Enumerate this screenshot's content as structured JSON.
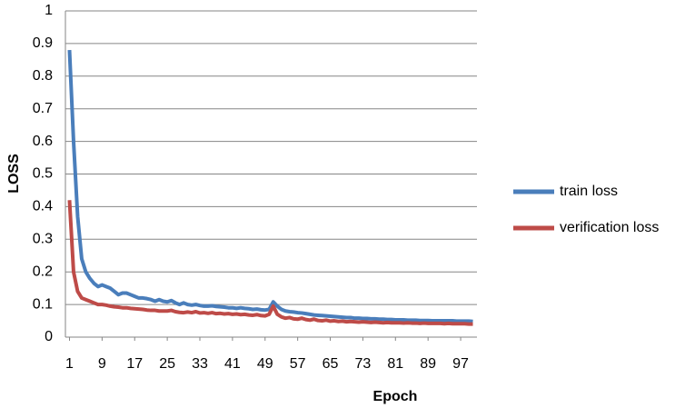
{
  "chart_data": {
    "type": "line",
    "x_label": "Epoch",
    "y_label": "LOSS",
    "x": [
      1,
      2,
      3,
      4,
      5,
      6,
      7,
      8,
      9,
      10,
      11,
      12,
      13,
      14,
      15,
      16,
      17,
      18,
      19,
      20,
      21,
      22,
      23,
      24,
      25,
      26,
      27,
      28,
      29,
      30,
      31,
      32,
      33,
      34,
      35,
      36,
      37,
      38,
      39,
      40,
      41,
      42,
      43,
      44,
      45,
      46,
      47,
      48,
      49,
      50,
      51,
      52,
      53,
      54,
      55,
      56,
      57,
      58,
      59,
      60,
      61,
      62,
      63,
      64,
      65,
      66,
      67,
      68,
      69,
      70,
      71,
      72,
      73,
      74,
      75,
      76,
      77,
      78,
      79,
      80,
      81,
      82,
      83,
      84,
      85,
      86,
      87,
      88,
      89,
      90,
      91,
      92,
      93,
      94,
      95,
      96,
      97,
      98,
      99,
      100
    ],
    "series": [
      {
        "name": "train loss",
        "color": "#4a7ebb",
        "values": [
          0.88,
          0.6,
          0.37,
          0.24,
          0.2,
          0.18,
          0.165,
          0.155,
          0.16,
          0.155,
          0.15,
          0.14,
          0.13,
          0.135,
          0.135,
          0.13,
          0.125,
          0.12,
          0.12,
          0.118,
          0.115,
          0.11,
          0.115,
          0.11,
          0.108,
          0.112,
          0.105,
          0.1,
          0.105,
          0.1,
          0.098,
          0.1,
          0.097,
          0.095,
          0.095,
          0.096,
          0.094,
          0.093,
          0.092,
          0.09,
          0.09,
          0.088,
          0.09,
          0.088,
          0.087,
          0.085,
          0.086,
          0.084,
          0.083,
          0.085,
          0.108,
          0.095,
          0.085,
          0.08,
          0.078,
          0.077,
          0.075,
          0.074,
          0.072,
          0.07,
          0.068,
          0.067,
          0.066,
          0.065,
          0.064,
          0.063,
          0.062,
          0.061,
          0.06,
          0.06,
          0.058,
          0.058,
          0.057,
          0.057,
          0.056,
          0.056,
          0.055,
          0.055,
          0.054,
          0.054,
          0.053,
          0.053,
          0.053,
          0.052,
          0.052,
          0.052,
          0.051,
          0.051,
          0.051,
          0.05,
          0.05,
          0.05,
          0.05,
          0.05,
          0.05,
          0.049,
          0.049,
          0.049,
          0.049,
          0.048
        ]
      },
      {
        "name": "verification loss",
        "color": "#be4b48",
        "values": [
          0.42,
          0.2,
          0.14,
          0.12,
          0.115,
          0.11,
          0.105,
          0.1,
          0.1,
          0.098,
          0.095,
          0.093,
          0.092,
          0.09,
          0.09,
          0.088,
          0.087,
          0.086,
          0.085,
          0.083,
          0.082,
          0.082,
          0.08,
          0.08,
          0.08,
          0.082,
          0.078,
          0.076,
          0.075,
          0.077,
          0.075,
          0.078,
          0.074,
          0.075,
          0.073,
          0.075,
          0.072,
          0.073,
          0.071,
          0.072,
          0.07,
          0.071,
          0.069,
          0.07,
          0.068,
          0.067,
          0.069,
          0.066,
          0.065,
          0.07,
          0.095,
          0.07,
          0.062,
          0.058,
          0.06,
          0.056,
          0.055,
          0.058,
          0.054,
          0.052,
          0.055,
          0.051,
          0.05,
          0.052,
          0.049,
          0.05,
          0.048,
          0.049,
          0.047,
          0.048,
          0.047,
          0.046,
          0.047,
          0.046,
          0.045,
          0.046,
          0.045,
          0.044,
          0.045,
          0.044,
          0.044,
          0.044,
          0.043,
          0.044,
          0.043,
          0.043,
          0.042,
          0.043,
          0.042,
          0.042,
          0.042,
          0.042,
          0.041,
          0.042,
          0.041,
          0.041,
          0.041,
          0.041,
          0.04,
          0.04
        ]
      }
    ],
    "xlim": [
      0,
      101
    ],
    "xticks": [
      1,
      9,
      17,
      25,
      33,
      41,
      49,
      57,
      65,
      73,
      81,
      89,
      97
    ],
    "ylim": [
      0,
      1
    ],
    "yticks": [
      0,
      0.1,
      0.2,
      0.3,
      0.4,
      0.5,
      0.6,
      0.7,
      0.8,
      0.9,
      1
    ],
    "grid": true,
    "legend": "right"
  }
}
